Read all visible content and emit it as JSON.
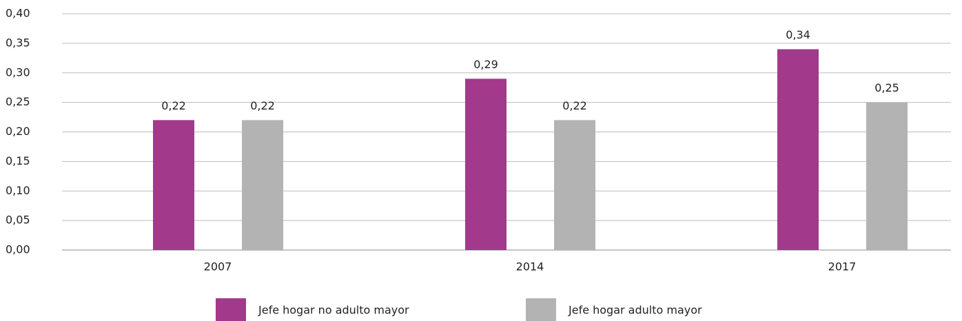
{
  "chart_data": {
    "type": "bar",
    "categories": [
      "2007",
      "2014",
      "2017"
    ],
    "series": [
      {
        "name": "Jefe hogar no adulto mayor",
        "color": "#a3398a",
        "values": [
          0.22,
          0.29,
          0.34
        ],
        "value_labels": [
          "0,22",
          "0,29",
          "0,34"
        ]
      },
      {
        "name": "Jefe hogar adulto mayor",
        "color": "#b3b3b3",
        "values": [
          0.22,
          0.22,
          0.25
        ],
        "value_labels": [
          "0,22",
          "0,22",
          "0,25"
        ]
      }
    ],
    "ylim": [
      0,
      0.4
    ],
    "yticks": [
      {
        "value": 0,
        "label": "0,00"
      },
      {
        "value": 0.05,
        "label": "0,05"
      },
      {
        "value": 0.1,
        "label": "0,10"
      },
      {
        "value": 0.15,
        "label": "0,15"
      },
      {
        "value": 0.2,
        "label": "0,20"
      },
      {
        "value": 0.25,
        "label": "0,25"
      },
      {
        "value": 0.3,
        "label": "0,30"
      },
      {
        "value": 0.35,
        "label": "0,35"
      },
      {
        "value": 0.4,
        "label": "0,40"
      }
    ],
    "grid": true,
    "legend": "bottom"
  }
}
